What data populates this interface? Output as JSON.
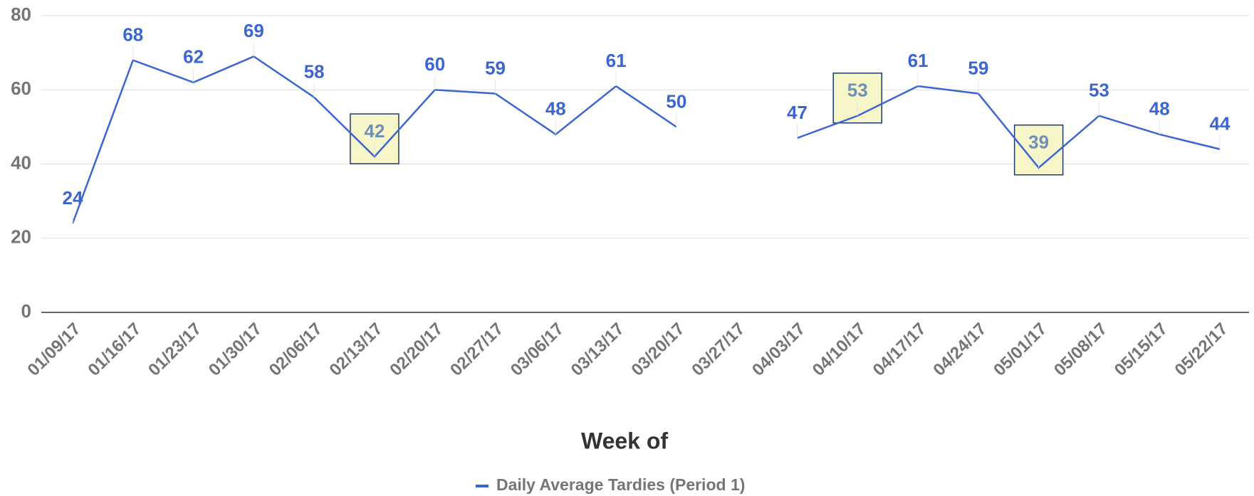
{
  "chart_data": {
    "type": "line",
    "x_label": "Week of",
    "categories": [
      "01/09/17",
      "01/16/17",
      "01/23/17",
      "01/30/17",
      "02/06/17",
      "02/13/17",
      "02/20/17",
      "02/27/17",
      "03/06/17",
      "03/13/17",
      "03/20/17",
      "03/27/17",
      "04/03/17",
      "04/10/17",
      "04/17/17",
      "04/24/17",
      "05/01/17",
      "05/08/17",
      "05/15/17",
      "05/22/17"
    ],
    "series": [
      {
        "name": "Daily Average Tardies (Period 1)",
        "color": "#3b66d1",
        "values": [
          24,
          68,
          62,
          69,
          58,
          42,
          60,
          59,
          48,
          61,
          50,
          null,
          47,
          53,
          61,
          59,
          39,
          53,
          48,
          44
        ]
      }
    ],
    "highlighted": [
      5,
      13,
      16
    ],
    "ylim": [
      0,
      80
    ],
    "yticks": [
      0,
      20,
      40,
      60,
      80
    ],
    "grid": true,
    "legend": "bottom"
  }
}
